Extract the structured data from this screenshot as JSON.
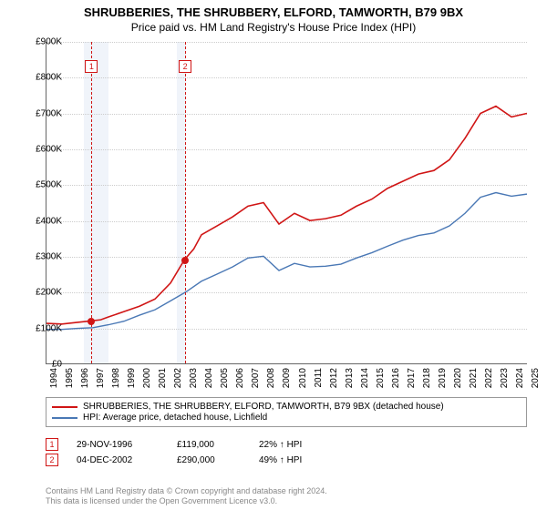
{
  "title_line1": "SHRUBBERIES, THE SHRUBBERY, ELFORD, TAMWORTH, B79 9BX",
  "title_line2": "Price paid vs. HM Land Registry's House Price Index (HPI)",
  "chart": {
    "type": "line",
    "background_color": "#ffffff",
    "grid_color": "#cccccc",
    "axis_color": "#666666",
    "y_axis": {
      "min": 0,
      "max": 900000,
      "step": 100000,
      "labels": [
        "£0",
        "£100K",
        "£200K",
        "£300K",
        "£400K",
        "£500K",
        "£600K",
        "£700K",
        "£800K",
        "£900K"
      ]
    },
    "x_axis": {
      "min": 1994,
      "max": 2025,
      "labels": [
        "1994",
        "1995",
        "1996",
        "1997",
        "1998",
        "1999",
        "2000",
        "2001",
        "2002",
        "2003",
        "2004",
        "2005",
        "2006",
        "2007",
        "2008",
        "2009",
        "2010",
        "2011",
        "2012",
        "2013",
        "2014",
        "2015",
        "2016",
        "2017",
        "2018",
        "2019",
        "2020",
        "2021",
        "2022",
        "2023",
        "2024",
        "2025"
      ]
    },
    "shaded_bands": [
      {
        "from": 1996.4,
        "to": 1998.0,
        "color": "#f0f4fa"
      },
      {
        "from": 2002.4,
        "to": 2003.0,
        "color": "#f0f4fa"
      }
    ],
    "series": [
      {
        "name": "property",
        "color": "#d01515",
        "width": 1.6,
        "label": "SHRUBBERIES, THE SHRUBBERY, ELFORD, TAMWORTH, B79 9BX (detached house)",
        "points": [
          [
            1994,
            112000
          ],
          [
            1995,
            110000
          ],
          [
            1996,
            115000
          ],
          [
            1996.9,
            119000
          ],
          [
            1997.5,
            122000
          ],
          [
            1998,
            130000
          ],
          [
            1999,
            145000
          ],
          [
            2000,
            160000
          ],
          [
            2001,
            180000
          ],
          [
            2002,
            225000
          ],
          [
            2002.9,
            290000
          ],
          [
            2003.5,
            320000
          ],
          [
            2004,
            360000
          ],
          [
            2005,
            385000
          ],
          [
            2006,
            410000
          ],
          [
            2007,
            440000
          ],
          [
            2008,
            450000
          ],
          [
            2009,
            390000
          ],
          [
            2010,
            420000
          ],
          [
            2011,
            400000
          ],
          [
            2012,
            405000
          ],
          [
            2013,
            415000
          ],
          [
            2014,
            440000
          ],
          [
            2015,
            460000
          ],
          [
            2016,
            490000
          ],
          [
            2017,
            510000
          ],
          [
            2018,
            530000
          ],
          [
            2019,
            540000
          ],
          [
            2020,
            570000
          ],
          [
            2021,
            630000
          ],
          [
            2022,
            700000
          ],
          [
            2023,
            720000
          ],
          [
            2024,
            690000
          ],
          [
            2025,
            700000
          ]
        ]
      },
      {
        "name": "hpi",
        "color": "#4a78b5",
        "width": 1.4,
        "label": "HPI: Average price, detached house, Lichfield",
        "points": [
          [
            1994,
            95000
          ],
          [
            1995,
            95000
          ],
          [
            1996,
            98000
          ],
          [
            1997,
            100000
          ],
          [
            1998,
            108000
          ],
          [
            1999,
            118000
          ],
          [
            2000,
            135000
          ],
          [
            2001,
            150000
          ],
          [
            2002,
            175000
          ],
          [
            2003,
            200000
          ],
          [
            2004,
            230000
          ],
          [
            2005,
            250000
          ],
          [
            2006,
            270000
          ],
          [
            2007,
            295000
          ],
          [
            2008,
            300000
          ],
          [
            2009,
            260000
          ],
          [
            2010,
            280000
          ],
          [
            2011,
            270000
          ],
          [
            2012,
            272000
          ],
          [
            2013,
            278000
          ],
          [
            2014,
            295000
          ],
          [
            2015,
            310000
          ],
          [
            2016,
            328000
          ],
          [
            2017,
            345000
          ],
          [
            2018,
            358000
          ],
          [
            2019,
            365000
          ],
          [
            2020,
            385000
          ],
          [
            2021,
            420000
          ],
          [
            2022,
            465000
          ],
          [
            2023,
            478000
          ],
          [
            2024,
            468000
          ],
          [
            2025,
            474000
          ]
        ]
      }
    ],
    "markers": [
      {
        "n": "1",
        "year": 1996.9,
        "value": 119000,
        "color": "#d01515"
      },
      {
        "n": "2",
        "year": 2002.93,
        "value": 290000,
        "color": "#d01515"
      }
    ]
  },
  "events": [
    {
      "n": "1",
      "date": "29-NOV-1996",
      "price": "£119,000",
      "delta": "22% ↑ HPI",
      "color": "#d01515"
    },
    {
      "n": "2",
      "date": "04-DEC-2002",
      "price": "£290,000",
      "delta": "49% ↑ HPI",
      "color": "#d01515"
    }
  ],
  "footnote_line1": "Contains HM Land Registry data © Crown copyright and database right 2024.",
  "footnote_line2": "This data is licensed under the Open Government Licence v3.0."
}
